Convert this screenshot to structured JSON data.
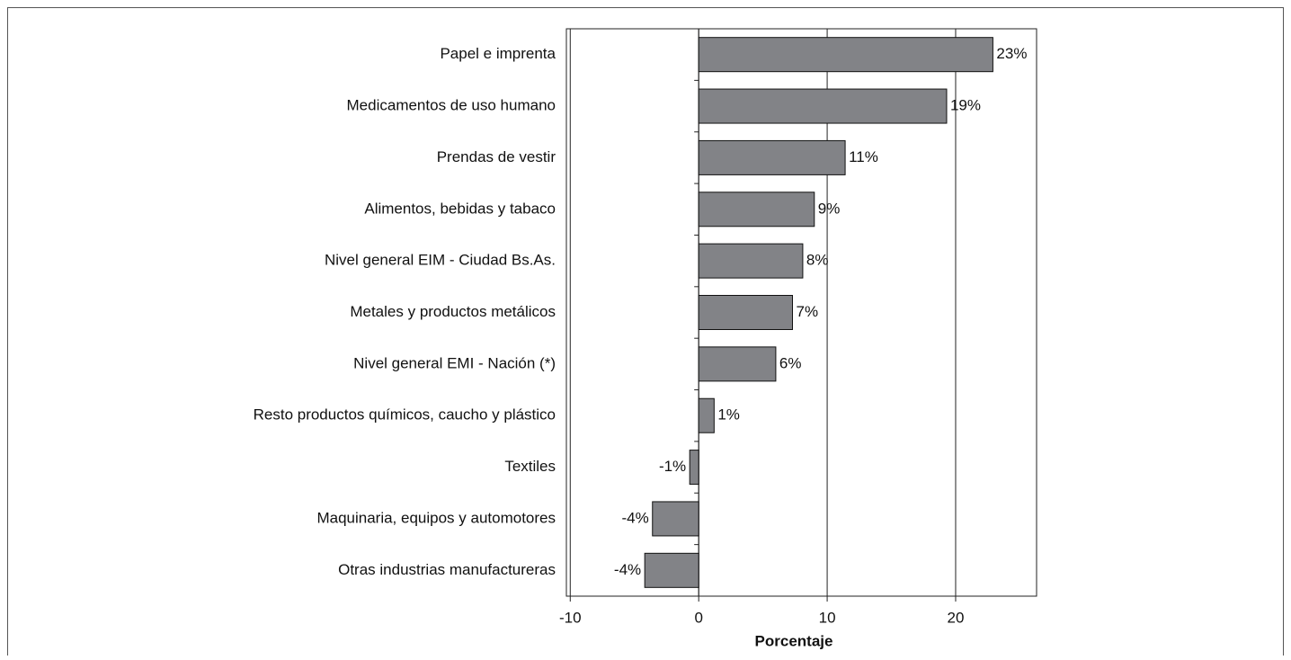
{
  "chart_data": {
    "type": "hbar",
    "x_label": "Porcentaje",
    "categories": [
      "Papel e imprenta",
      "Medicamentos de uso humano",
      "Prendas de vestir",
      "Alimentos, bebidas y tabaco",
      "Nivel general EIM - Ciudad Bs.As.",
      "Metales y productos metálicos",
      "Nivel general EMI - Nación (*)",
      "Resto productos químicos, caucho y plástico",
      "Textiles",
      "Maquinaria, equipos y automotores",
      "Otras industrias manufactureras"
    ],
    "values": [
      22.9,
      19.3,
      11.4,
      9.0,
      8.1,
      7.3,
      6.0,
      1.2,
      -0.7,
      -3.6,
      -4.2
    ],
    "value_labels": [
      "23%",
      "19%",
      "11%",
      "9%",
      "8%",
      "7%",
      "6%",
      "1%",
      "-1%",
      "-4%",
      "-4%"
    ],
    "color": "#828387",
    "xlim": [
      -10.3,
      26.3
    ],
    "xticks": [
      -10,
      0,
      10,
      20
    ],
    "grid": true
  }
}
